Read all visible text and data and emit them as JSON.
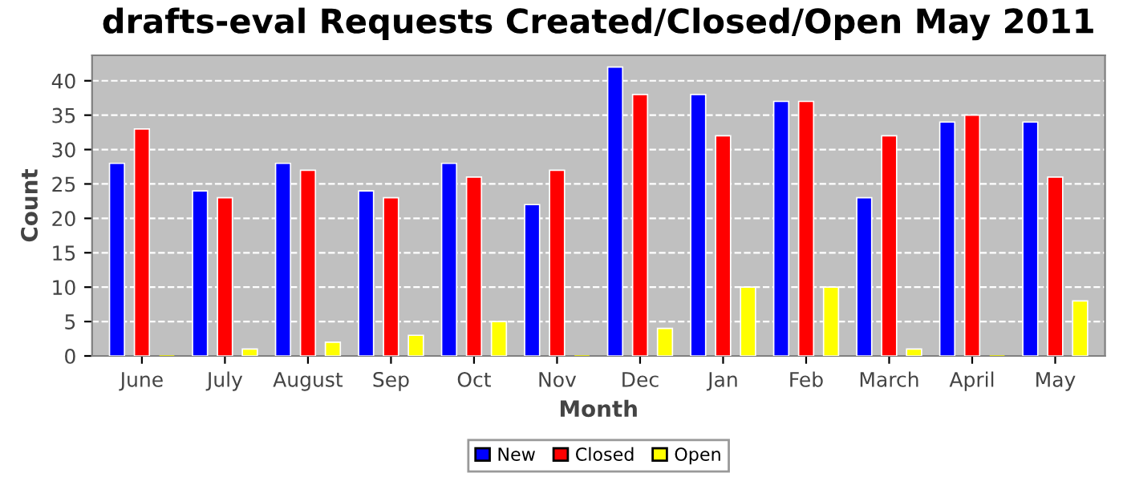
{
  "chart_data": {
    "type": "bar",
    "title": "drafts-eval Requests Created/Closed/Open May 2011",
    "xlabel": "Month",
    "ylabel": "Count",
    "categories": [
      "June",
      "July",
      "August",
      "Sep",
      "Oct",
      "Nov",
      "Dec",
      "Jan",
      "Feb",
      "March",
      "April",
      "May"
    ],
    "series": [
      {
        "name": "New",
        "color": "#0000ff",
        "values": [
          28,
          24,
          28,
          24,
          28,
          22,
          42,
          38,
          37,
          23,
          34,
          34
        ]
      },
      {
        "name": "Closed",
        "color": "#ff0000",
        "values": [
          33,
          23,
          27,
          23,
          26,
          27,
          38,
          32,
          37,
          32,
          35,
          26
        ]
      },
      {
        "name": "Open",
        "color": "#ffff00",
        "values": [
          0,
          1,
          2,
          3,
          5,
          0,
          4,
          10,
          10,
          1,
          0,
          8
        ]
      }
    ],
    "ylim": [
      0,
      43.7
    ],
    "yticks": [
      0,
      5,
      10,
      15,
      20,
      25,
      30,
      35,
      40
    ],
    "grid": "y",
    "legend": "bottom"
  }
}
